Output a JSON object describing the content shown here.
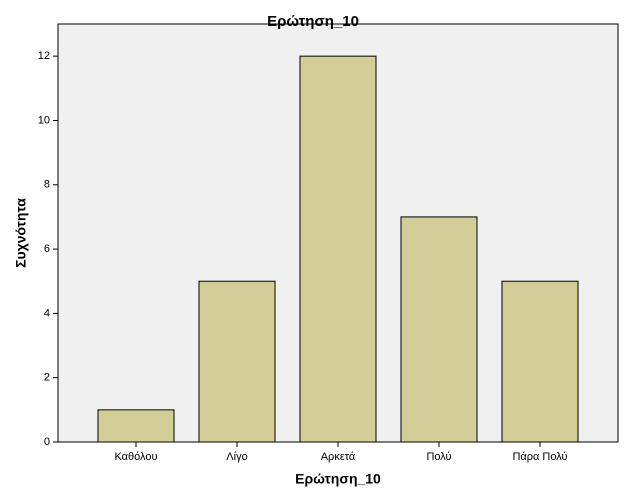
{
  "chart_data": {
    "type": "bar",
    "title": "Ερώτηση_10",
    "x_label": "Ερώτηση_10",
    "y_label": "Συχνότητα",
    "categories": [
      "Καθόλου",
      "Λίγο",
      "Αρκετά",
      "Πολύ",
      "Πάρα Πολύ"
    ],
    "values": [
      1,
      5,
      12,
      7,
      5
    ],
    "color": "#d3ce97",
    "ylim": [
      0,
      13
    ],
    "yticks": [
      0,
      2,
      4,
      6,
      8,
      10,
      12
    ],
    "grid": false
  }
}
